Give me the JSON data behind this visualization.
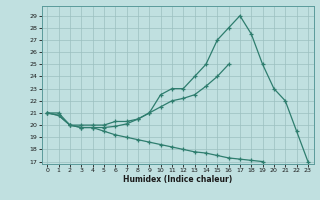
{
  "x": [
    0,
    1,
    2,
    3,
    4,
    5,
    6,
    7,
    8,
    9,
    10,
    11,
    12,
    13,
    14,
    15,
    16,
    17,
    18,
    19,
    20,
    21,
    22,
    23
  ],
  "curve_top": [
    21,
    21,
    20,
    20,
    20,
    20,
    20.3,
    20.3,
    20.5,
    21.0,
    22.5,
    23.0,
    23.0,
    24.0,
    25.0,
    27.0,
    28.0,
    29.0,
    27.5,
    25.0,
    23.0,
    22.0,
    19.5,
    17.0
  ],
  "curve_mid": [
    21,
    20.8,
    20,
    19.8,
    19.8,
    19.8,
    19.9,
    20.1,
    20.5,
    21.0,
    21.5,
    22.0,
    22.2,
    22.5,
    23.2,
    24.0,
    25.0,
    null,
    null,
    null,
    null,
    null,
    null,
    null
  ],
  "curve_bot": [
    21,
    20.8,
    20,
    19.8,
    19.8,
    19.5,
    19.2,
    19.0,
    18.8,
    18.6,
    18.4,
    18.2,
    18.0,
    17.8,
    17.7,
    17.5,
    17.3,
    17.2,
    17.1,
    17.0,
    null,
    null,
    null,
    null
  ],
  "xlabel": "Humidex (Indice chaleur)",
  "xlim": [
    -0.5,
    23.5
  ],
  "ylim": [
    16.8,
    29.8
  ],
  "yticks": [
    17,
    18,
    19,
    20,
    21,
    22,
    23,
    24,
    25,
    26,
    27,
    28,
    29
  ],
  "xticks": [
    0,
    1,
    2,
    3,
    4,
    5,
    6,
    7,
    8,
    9,
    10,
    11,
    12,
    13,
    14,
    15,
    16,
    17,
    18,
    19,
    20,
    21,
    22,
    23
  ],
  "line_color": "#2e7d6e",
  "marker": "+",
  "bg_color": "#c0e0e0",
  "grid_color": "#9bbfbf"
}
